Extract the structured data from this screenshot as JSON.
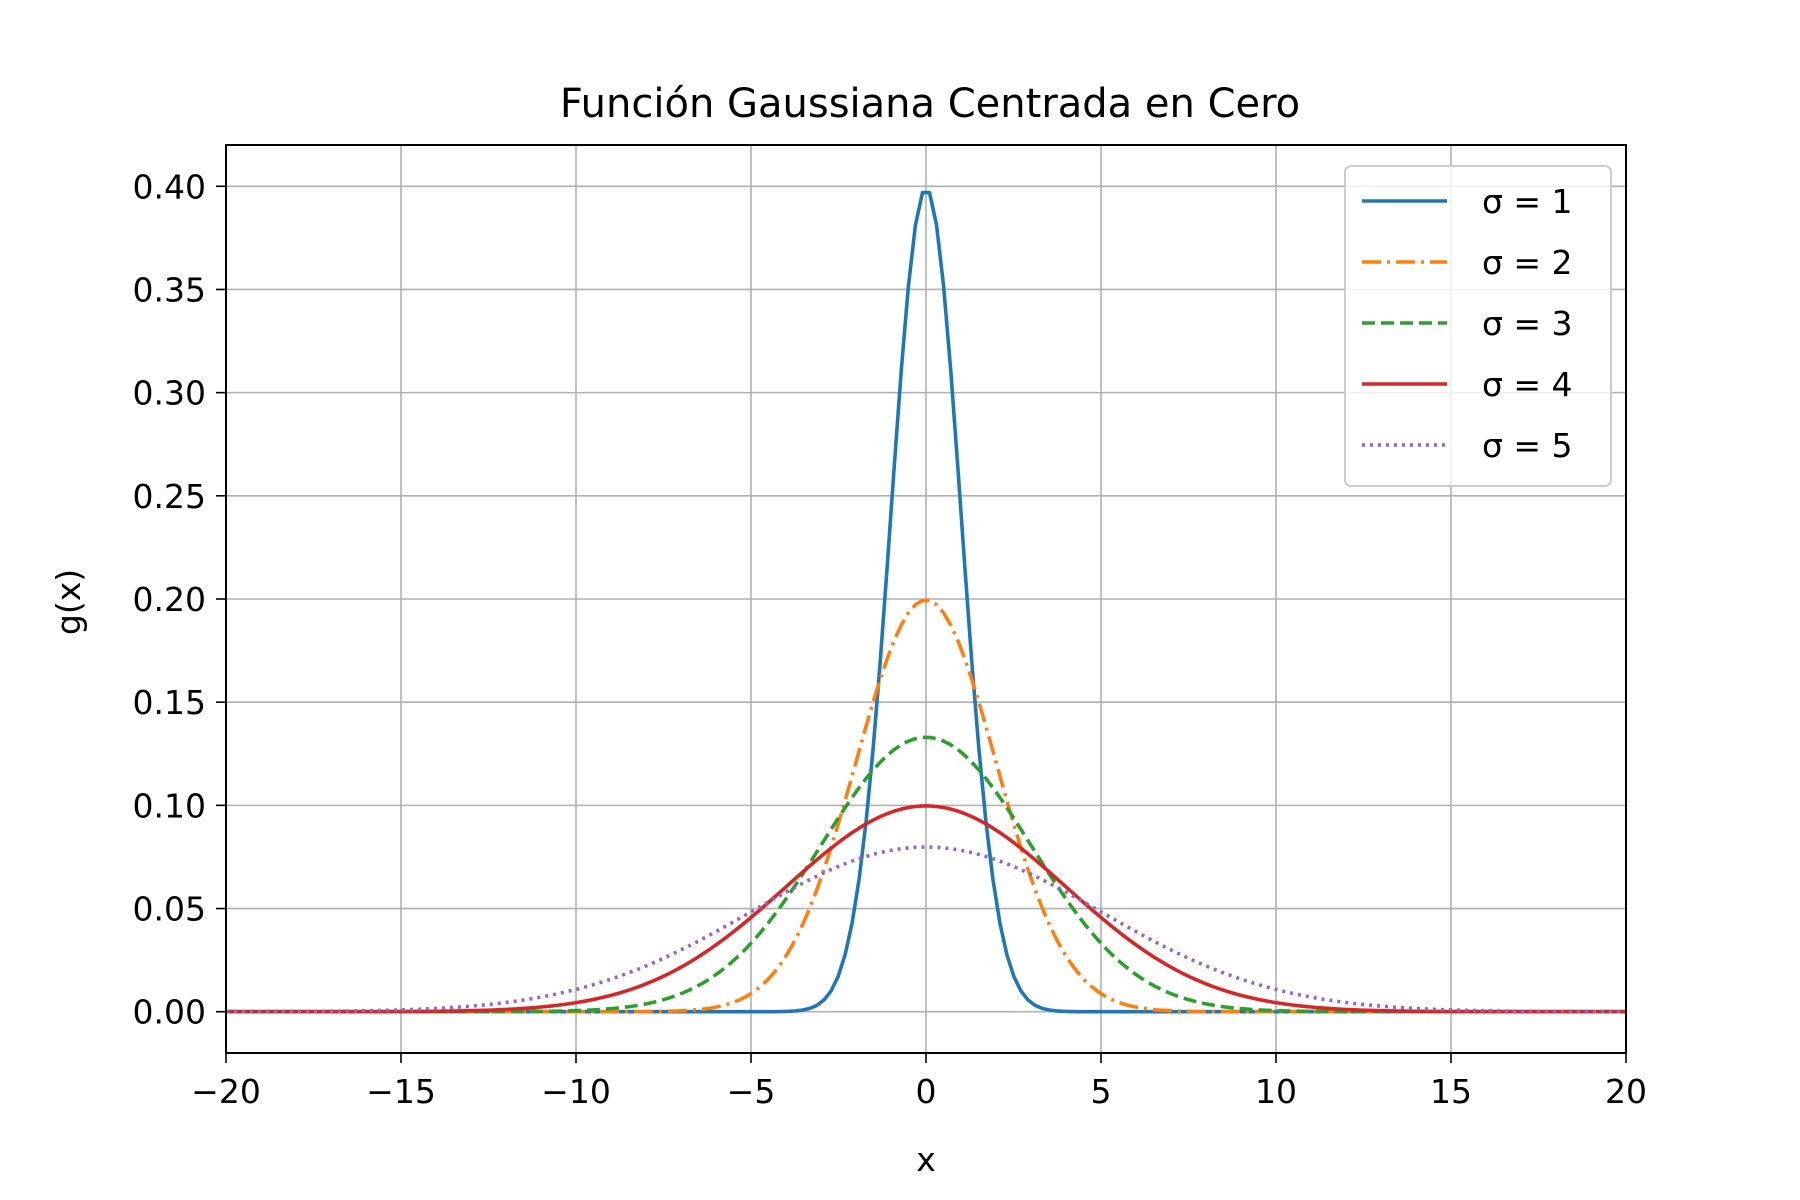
{
  "chart_data": {
    "type": "line",
    "title": "Función Gaussiana Centrada en Cero",
    "xlabel": "x",
    "ylabel": "g(x)",
    "xlim": [
      -20,
      20
    ],
    "ylim": [
      -0.02,
      0.42
    ],
    "xticks": [
      -20,
      -15,
      -10,
      -5,
      0,
      5,
      10,
      15,
      20
    ],
    "xtick_labels": [
      "−20",
      "−15",
      "−10",
      "−5",
      "0",
      "5",
      "10",
      "15",
      "20"
    ],
    "yticks": [
      0.0,
      0.05,
      0.1,
      0.15,
      0.2,
      0.25,
      0.3,
      0.35,
      0.4
    ],
    "ytick_labels": [
      "0.00",
      "0.05",
      "0.10",
      "0.15",
      "0.20",
      "0.25",
      "0.30",
      "0.35",
      "0.40"
    ],
    "grid": true,
    "legend_position": "top-right",
    "function": "gaussian",
    "x_domain": [
      -20,
      20
    ],
    "sample_count": 200,
    "series": [
      {
        "name": "σ = 1",
        "sigma": 1,
        "peak": 0.399,
        "color": "#1f77b4",
        "style": "solid"
      },
      {
        "name": "σ = 2",
        "sigma": 2,
        "peak": 0.199,
        "color": "#ff7f0e",
        "style": "dashdot"
      },
      {
        "name": "σ = 3",
        "sigma": 3,
        "peak": 0.133,
        "color": "#2ca02c",
        "style": "dashed"
      },
      {
        "name": "σ = 4",
        "sigma": 4,
        "peak": 0.0997,
        "color": "#d62728",
        "style": "solid"
      },
      {
        "name": "σ = 5",
        "sigma": 5,
        "peak": 0.0798,
        "color": "#9467bd",
        "style": "dotted"
      }
    ]
  }
}
